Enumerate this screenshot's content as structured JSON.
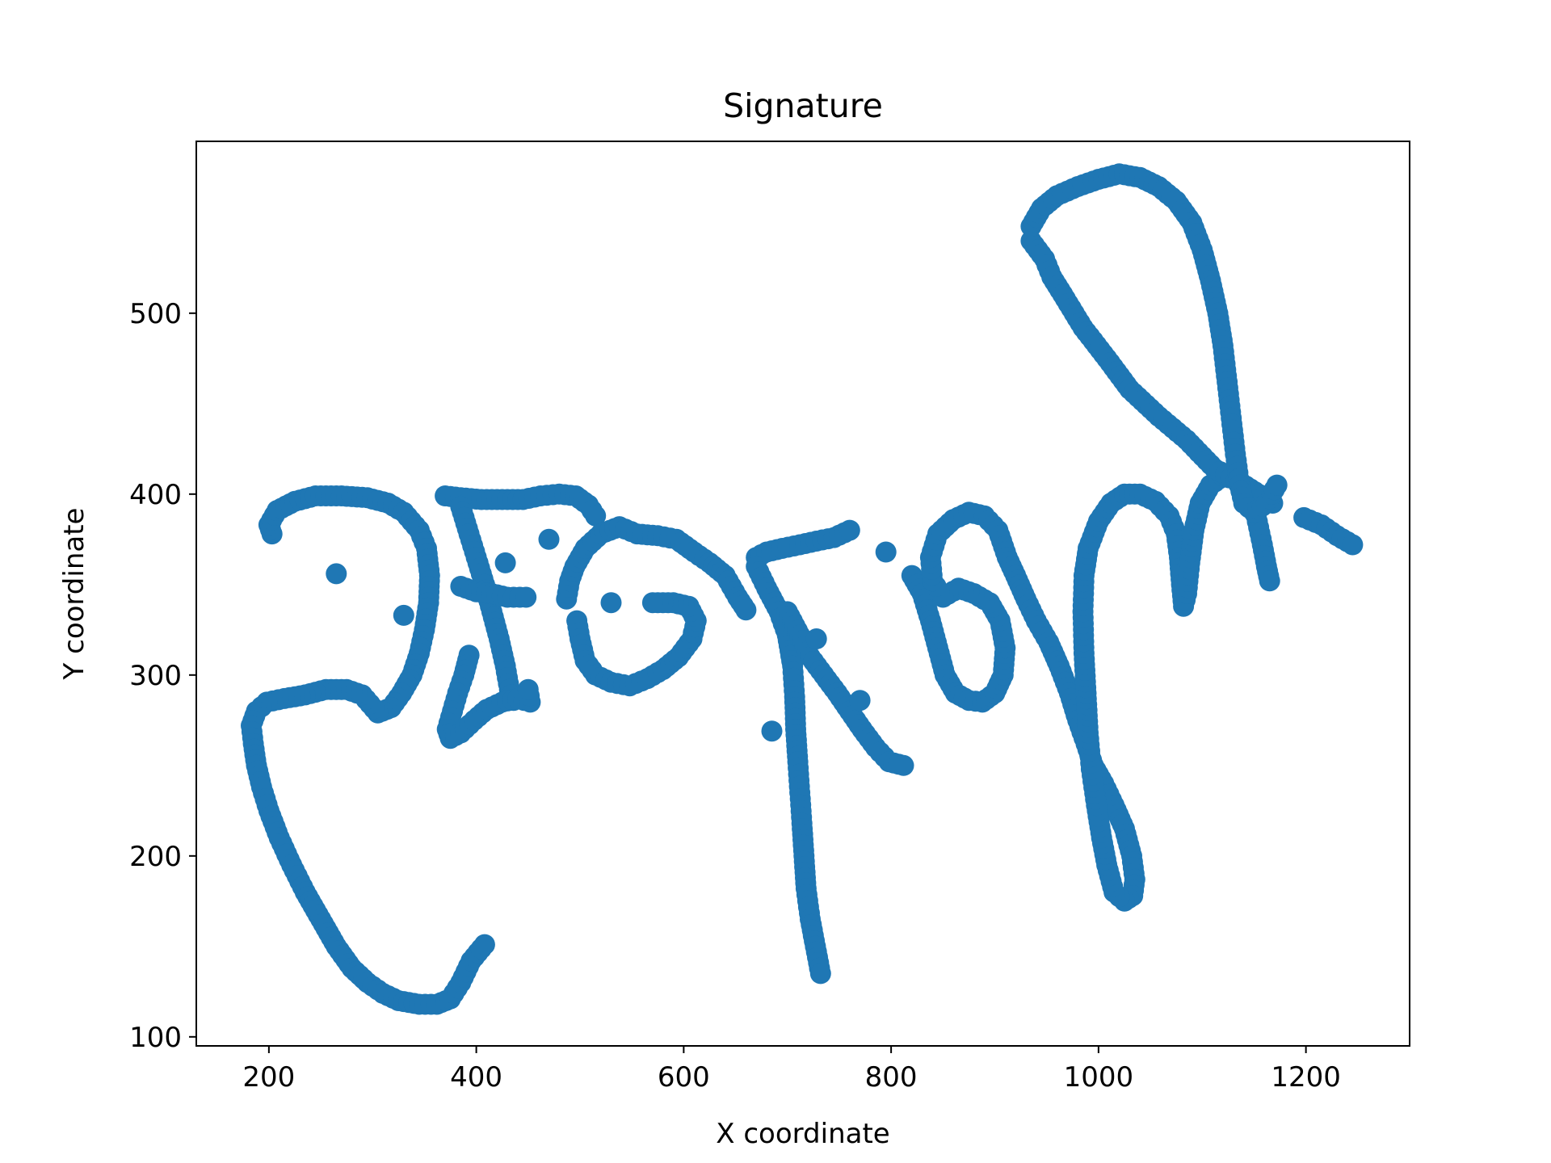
{
  "chart_data": {
    "type": "scatter",
    "title": "Signature",
    "xlabel": "X coordinate",
    "ylabel": "Y coordinate",
    "xlim": [
      130,
      1300
    ],
    "ylim": [
      95,
      595
    ],
    "xticks": [
      200,
      400,
      600,
      800,
      1000,
      1200
    ],
    "yticks": [
      100,
      200,
      300,
      400,
      500
    ],
    "grid": false,
    "legend": "none",
    "marker_color": "#1f77b4",
    "strokes": [
      [
        [
          203,
          378
        ],
        [
          200,
          383
        ],
        [
          208,
          391
        ],
        [
          225,
          396
        ],
        [
          245,
          399
        ],
        [
          270,
          399
        ],
        [
          295,
          398
        ],
        [
          315,
          395
        ],
        [
          330,
          390
        ],
        [
          345,
          380
        ],
        [
          352,
          370
        ],
        [
          355,
          355
        ],
        [
          354,
          340
        ],
        [
          350,
          325
        ],
        [
          345,
          312
        ],
        [
          338,
          300
        ],
        [
          328,
          290
        ],
        [
          318,
          282
        ],
        [
          305,
          279
        ],
        [
          290,
          289
        ],
        [
          275,
          292
        ],
        [
          255,
          292
        ],
        [
          235,
          289
        ],
        [
          215,
          287
        ],
        [
          198,
          285
        ],
        [
          188,
          280
        ],
        [
          183,
          272
        ],
        [
          185,
          262
        ],
        [
          188,
          250
        ],
        [
          193,
          238
        ],
        [
          200,
          225
        ],
        [
          210,
          210
        ],
        [
          222,
          195
        ],
        [
          235,
          180
        ],
        [
          250,
          165
        ],
        [
          265,
          150
        ],
        [
          280,
          138
        ],
        [
          295,
          130
        ],
        [
          310,
          124
        ],
        [
          325,
          120
        ],
        [
          345,
          118
        ],
        [
          362,
          118
        ],
        [
          375,
          121
        ],
        [
          385,
          130
        ],
        [
          395,
          142
        ],
        [
          408,
          151
        ]
      ],
      [
        [
          330,
          333
        ]
      ],
      [
        [
          265,
          356
        ]
      ],
      [
        [
          370,
          399
        ],
        [
          385,
          398
        ],
        [
          405,
          397
        ],
        [
          425,
          397
        ],
        [
          445,
          397
        ],
        [
          462,
          399
        ],
        [
          480,
          400
        ],
        [
          496,
          399
        ],
        [
          508,
          394
        ],
        [
          515,
          388
        ]
      ],
      [
        [
          385,
          393
        ],
        [
          393,
          378
        ],
        [
          400,
          365
        ],
        [
          408,
          350
        ],
        [
          415,
          335
        ],
        [
          422,
          320
        ],
        [
          428,
          305
        ],
        [
          432,
          292
        ],
        [
          436,
          286
        ]
      ],
      [
        [
          393,
          311
        ],
        [
          388,
          300
        ],
        [
          382,
          290
        ],
        [
          377,
          280
        ],
        [
          372,
          270
        ],
        [
          375,
          265
        ],
        [
          385,
          268
        ],
        [
          398,
          275
        ],
        [
          410,
          281
        ],
        [
          425,
          285
        ],
        [
          440,
          287
        ],
        [
          452,
          285
        ],
        [
          450,
          292
        ]
      ],
      [
        [
          385,
          349
        ],
        [
          400,
          346
        ],
        [
          415,
          345
        ],
        [
          430,
          343
        ],
        [
          448,
          343
        ]
      ],
      [
        [
          428,
          362
        ]
      ],
      [
        [
          470,
          375
        ]
      ],
      [
        [
          487,
          342
        ],
        [
          490,
          352
        ],
        [
          495,
          360
        ],
        [
          505,
          370
        ],
        [
          520,
          378
        ],
        [
          538,
          382
        ],
        [
          555,
          378
        ],
        [
          575,
          377
        ],
        [
          593,
          375
        ],
        [
          610,
          368
        ],
        [
          625,
          362
        ],
        [
          640,
          355
        ],
        [
          652,
          343
        ],
        [
          660,
          336
        ]
      ],
      [
        [
          497,
          330
        ],
        [
          500,
          320
        ],
        [
          505,
          308
        ],
        [
          515,
          300
        ],
        [
          530,
          296
        ],
        [
          548,
          294
        ],
        [
          565,
          298
        ],
        [
          580,
          303
        ],
        [
          595,
          310
        ],
        [
          608,
          320
        ],
        [
          612,
          330
        ],
        [
          605,
          338
        ],
        [
          590,
          340
        ],
        [
          570,
          340
        ]
      ],
      [
        [
          530,
          340
        ]
      ],
      [
        [
          670,
          365
        ],
        [
          680,
          368
        ],
        [
          695,
          370
        ],
        [
          712,
          372
        ],
        [
          728,
          374
        ],
        [
          745,
          376
        ],
        [
          760,
          380
        ]
      ],
      [
        [
          670,
          360
        ],
        [
          680,
          348
        ],
        [
          692,
          335
        ],
        [
          700,
          322
        ],
        [
          705,
          305
        ],
        [
          707,
          288
        ],
        [
          708,
          270
        ],
        [
          710,
          252
        ],
        [
          712,
          235
        ],
        [
          714,
          218
        ],
        [
          716,
          200
        ],
        [
          718,
          182
        ],
        [
          722,
          165
        ],
        [
          727,
          150
        ],
        [
          732,
          135
        ]
      ],
      [
        [
          685,
          269
        ]
      ],
      [
        [
          700,
          335
        ],
        [
          712,
          322
        ],
        [
          722,
          310
        ],
        [
          735,
          300
        ],
        [
          748,
          290
        ],
        [
          760,
          280
        ],
        [
          772,
          270
        ],
        [
          785,
          260
        ],
        [
          798,
          252
        ],
        [
          812,
          250
        ]
      ],
      [
        [
          728,
          320
        ]
      ],
      [
        [
          770,
          286
        ]
      ],
      [
        [
          795,
          368
        ]
      ],
      [
        [
          820,
          355
        ],
        [
          830,
          345
        ],
        [
          838,
          330
        ],
        [
          845,
          315
        ],
        [
          852,
          300
        ],
        [
          862,
          290
        ],
        [
          875,
          286
        ],
        [
          888,
          285
        ],
        [
          900,
          290
        ],
        [
          908,
          300
        ],
        [
          910,
          315
        ],
        [
          905,
          330
        ],
        [
          895,
          340
        ],
        [
          880,
          345
        ],
        [
          865,
          348
        ],
        [
          850,
          343
        ],
        [
          840,
          352
        ],
        [
          838,
          365
        ],
        [
          845,
          378
        ],
        [
          860,
          386
        ],
        [
          875,
          390
        ],
        [
          890,
          388
        ],
        [
          903,
          380
        ],
        [
          912,
          365
        ],
        [
          920,
          355
        ],
        [
          930,
          342
        ],
        [
          940,
          330
        ],
        [
          952,
          318
        ],
        [
          962,
          305
        ],
        [
          972,
          290
        ],
        [
          980,
          275
        ],
        [
          988,
          262
        ],
        [
          995,
          250
        ],
        [
          1005,
          240
        ],
        [
          1015,
          228
        ],
        [
          1025,
          215
        ],
        [
          1032,
          200
        ],
        [
          1035,
          187
        ],
        [
          1033,
          178
        ],
        [
          1025,
          175
        ],
        [
          1015,
          180
        ],
        [
          1008,
          195
        ],
        [
          1003,
          210
        ],
        [
          998,
          228
        ],
        [
          993,
          248
        ],
        [
          990,
          268
        ],
        [
          988,
          290
        ],
        [
          986,
          312
        ],
        [
          985,
          335
        ],
        [
          986,
          355
        ],
        [
          990,
          370
        ],
        [
          1000,
          385
        ],
        [
          1012,
          395
        ],
        [
          1025,
          400
        ],
        [
          1040,
          400
        ],
        [
          1055,
          396
        ],
        [
          1068,
          388
        ],
        [
          1075,
          378
        ],
        [
          1078,
          365
        ],
        [
          1080,
          350
        ],
        [
          1082,
          338
        ],
        [
          1085,
          345
        ],
        [
          1088,
          362
        ],
        [
          1092,
          380
        ],
        [
          1098,
          395
        ],
        [
          1108,
          405
        ],
        [
          1120,
          410
        ],
        [
          1132,
          408
        ],
        [
          1142,
          400
        ],
        [
          1152,
          388
        ],
        [
          1158,
          372
        ],
        [
          1162,
          360
        ],
        [
          1165,
          352
        ]
      ],
      [
        [
          935,
          540
        ],
        [
          948,
          530
        ],
        [
          955,
          520
        ],
        [
          968,
          508
        ],
        [
          985,
          492
        ],
        [
          1008,
          475
        ],
        [
          1030,
          458
        ],
        [
          1058,
          443
        ],
        [
          1085,
          430
        ],
        [
          1112,
          414
        ],
        [
          1138,
          406
        ],
        [
          1168,
          395
        ]
      ],
      [
        [
          935,
          548
        ],
        [
          945,
          558
        ],
        [
          960,
          565
        ],
        [
          980,
          570
        ],
        [
          1000,
          574
        ],
        [
          1020,
          577
        ],
        [
          1040,
          575
        ],
        [
          1058,
          570
        ],
        [
          1075,
          562
        ],
        [
          1090,
          550
        ],
        [
          1100,
          535
        ],
        [
          1108,
          518
        ],
        [
          1115,
          500
        ],
        [
          1120,
          482
        ],
        [
          1124,
          462
        ],
        [
          1128,
          442
        ],
        [
          1132,
          422
        ],
        [
          1136,
          405
        ],
        [
          1140,
          395
        ],
        [
          1150,
          390
        ],
        [
          1162,
          395
        ],
        [
          1172,
          405
        ]
      ],
      [
        [
          1198,
          387
        ],
        [
          1215,
          383
        ],
        [
          1230,
          377
        ],
        [
          1245,
          372
        ]
      ]
    ]
  }
}
